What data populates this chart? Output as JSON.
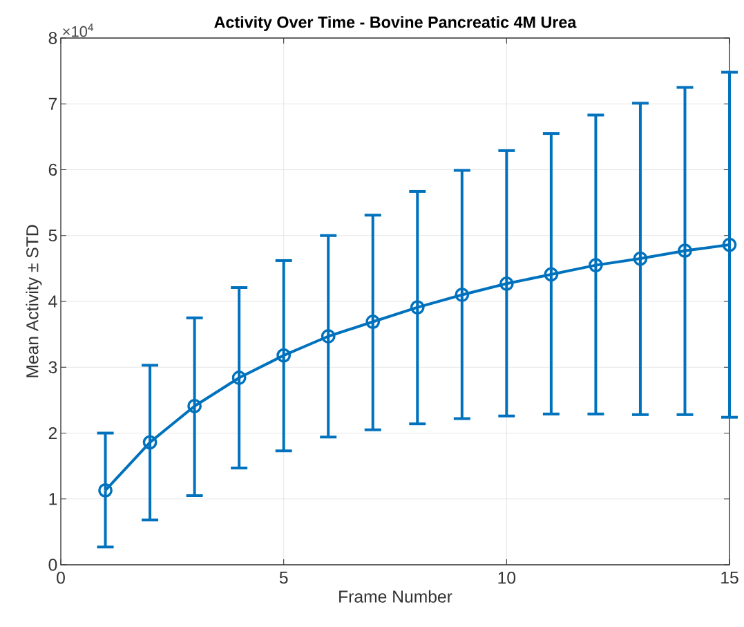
{
  "chart_data": {
    "type": "line",
    "title": "Activity Over Time - Bovine Pancreatic 4M Urea",
    "xlabel": "Frame Number",
    "ylabel": "Mean Activity ± STD",
    "annotations": [
      "×10$^{4}$"
    ],
    "x": [
      1,
      2,
      3,
      4,
      5,
      6,
      7,
      8,
      9,
      10,
      11,
      12,
      13,
      14,
      15
    ],
    "series": [
      {
        "color": "#0072bd",
        "values": [
          1.13,
          1.86,
          2.41,
          2.84,
          3.18,
          3.47,
          3.69,
          3.91,
          4.1,
          4.27,
          4.41,
          4.55,
          4.65,
          4.77,
          4.86
        ],
        "errors": [
          [
            0.27,
            2.0
          ],
          [
            0.68,
            3.03
          ],
          [
            1.05,
            3.75
          ],
          [
            1.47,
            4.21
          ],
          [
            1.73,
            4.62
          ],
          [
            1.94,
            5.0
          ],
          [
            2.05,
            5.31
          ],
          [
            2.14,
            5.67
          ],
          [
            2.22,
            5.99
          ],
          [
            2.26,
            6.29
          ],
          [
            2.29,
            6.55
          ],
          [
            2.29,
            6.83
          ],
          [
            2.28,
            7.01
          ],
          [
            2.28,
            7.25
          ],
          [
            2.24,
            7.48
          ]
        ]
      }
    ],
    "xlim": [
      0,
      15
    ],
    "ylim": [
      0,
      8
    ],
    "xticks": [
      0,
      5,
      10,
      15
    ],
    "yticks": [
      0,
      1,
      2,
      3,
      4,
      5,
      6,
      7,
      8
    ],
    "grid": true,
    "marker": "circle",
    "line_style": "solid"
  }
}
